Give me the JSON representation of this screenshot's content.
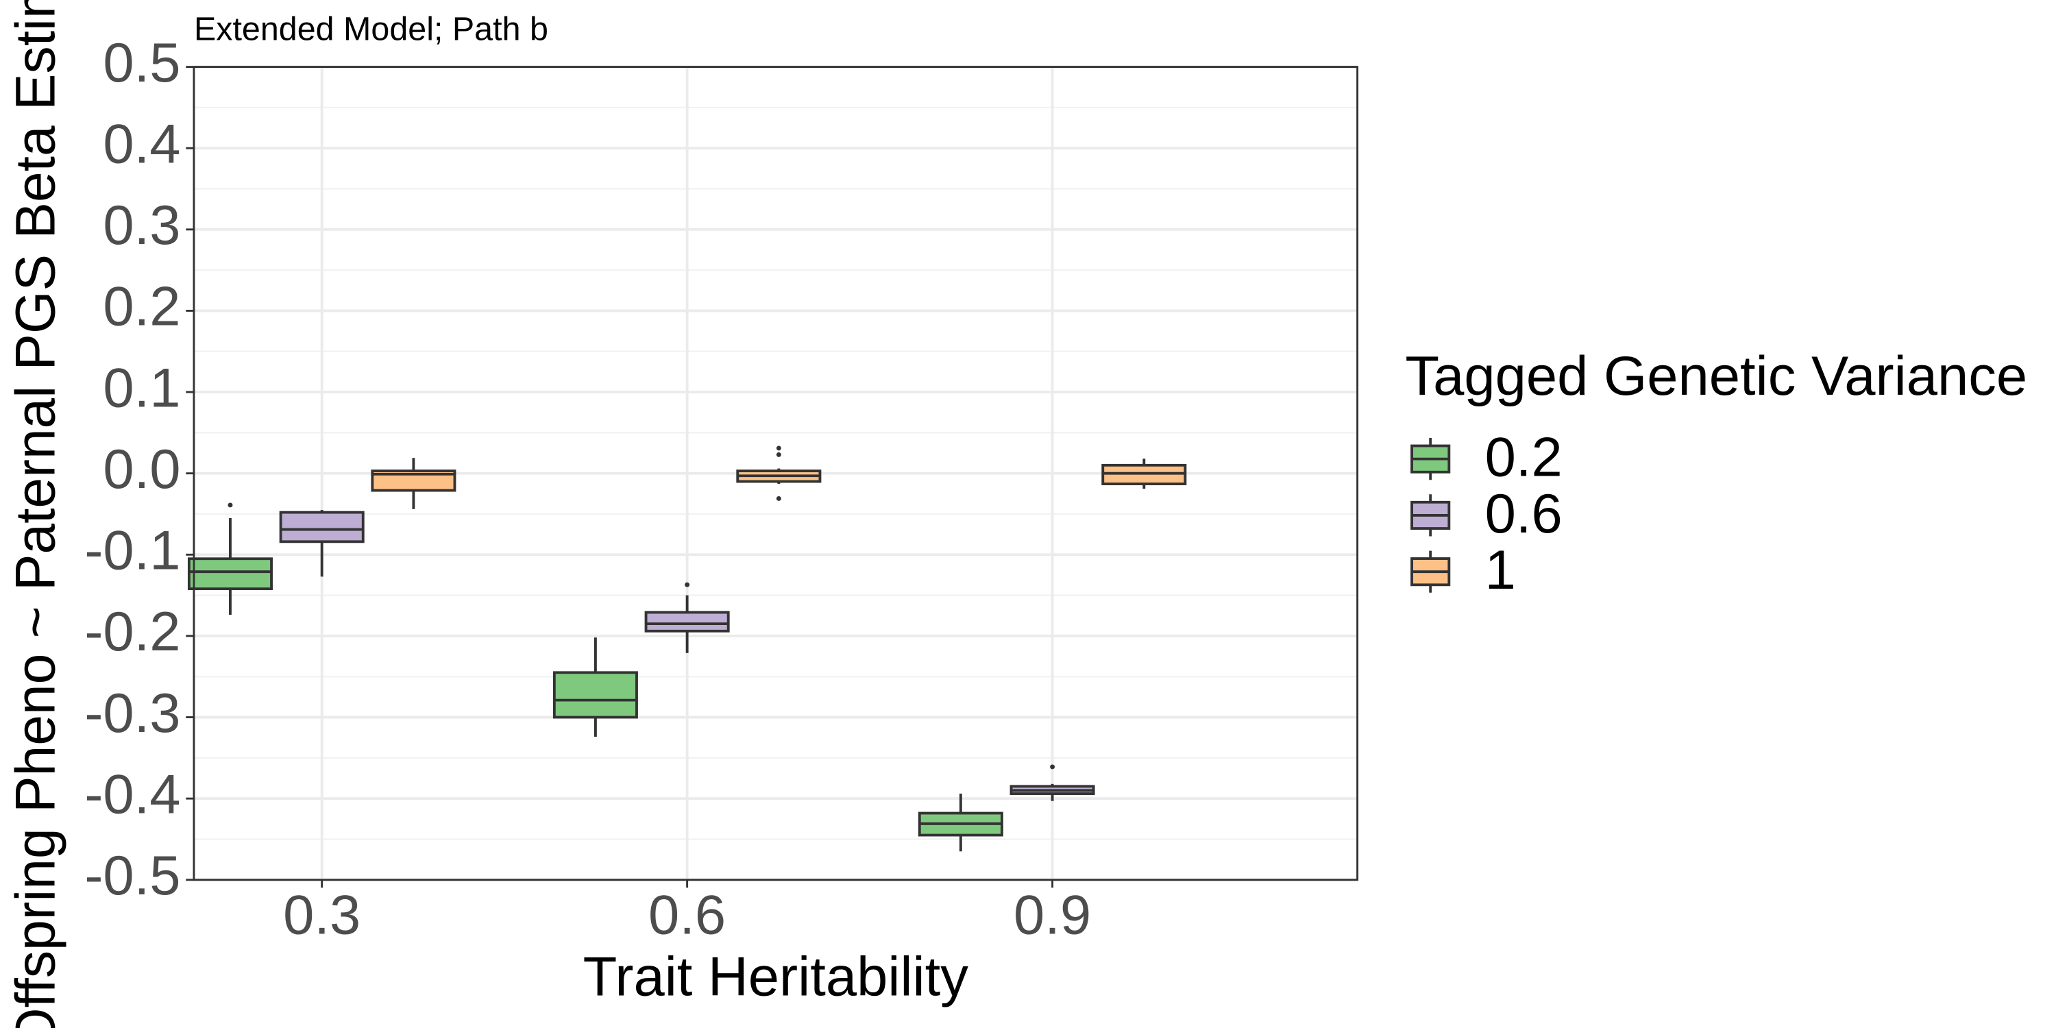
{
  "chart_data": {
    "type": "boxplot",
    "title": "Extended Model; Path b",
    "x_label": "Trait Heritability",
    "y_label": "Offspring Pheno ~ Paternal PGS Beta Estimate",
    "legend_title": "Tagged Genetic Variance",
    "legend_position": "right",
    "grid": true,
    "categories": [
      "0.3",
      "0.6",
      "0.9"
    ],
    "ylim": [
      -0.5,
      0.5
    ],
    "yticks": [
      -0.5,
      -0.4,
      -0.3,
      -0.2,
      -0.1,
      {
        "value": 0,
        "label": "0.0"
      },
      0.1,
      0.2,
      0.3,
      0.4,
      0.5
    ],
    "series": [
      {
        "name": "0.2",
        "color": "#7fc97f",
        "values": [
          {
            "min": -0.174,
            "q1": -0.142,
            "median": -0.121,
            "q3": -0.105,
            "max": -0.055,
            "outliers": [
              -0.039
            ]
          },
          {
            "min": -0.324,
            "q1": -0.3,
            "median": -0.279,
            "q3": -0.245,
            "max": -0.202,
            "outliers": []
          },
          {
            "min": -0.465,
            "q1": -0.445,
            "median": -0.431,
            "q3": -0.418,
            "max": -0.394,
            "outliers": []
          }
        ]
      },
      {
        "name": "0.6",
        "color": "#beaed4",
        "values": [
          {
            "min": -0.127,
            "q1": -0.084,
            "median": -0.069,
            "q3": -0.048,
            "max": -0.045,
            "outliers": []
          },
          {
            "min": -0.221,
            "q1": -0.194,
            "median": -0.185,
            "q3": -0.171,
            "max": -0.15,
            "outliers": [
              -0.137
            ]
          },
          {
            "min": -0.403,
            "q1": -0.394,
            "median": -0.39,
            "q3": -0.385,
            "max": -0.382,
            "outliers": [
              -0.361
            ]
          }
        ]
      },
      {
        "name": "1",
        "color": "#fdc086",
        "values": [
          {
            "min": -0.044,
            "q1": -0.021,
            "median": -0.001,
            "q3": 0.003,
            "max": 0.019,
            "outliers": []
          },
          {
            "min": -0.013,
            "q1": -0.01,
            "median": -0.003,
            "q3": 0.003,
            "max": 0.006,
            "outliers": [
              0.031,
              0.023,
              -0.031
            ]
          },
          {
            "min": -0.019,
            "q1": -0.013,
            "median": 0.0,
            "q3": 0.01,
            "max": 0.018,
            "outliers": []
          }
        ]
      }
    ]
  }
}
